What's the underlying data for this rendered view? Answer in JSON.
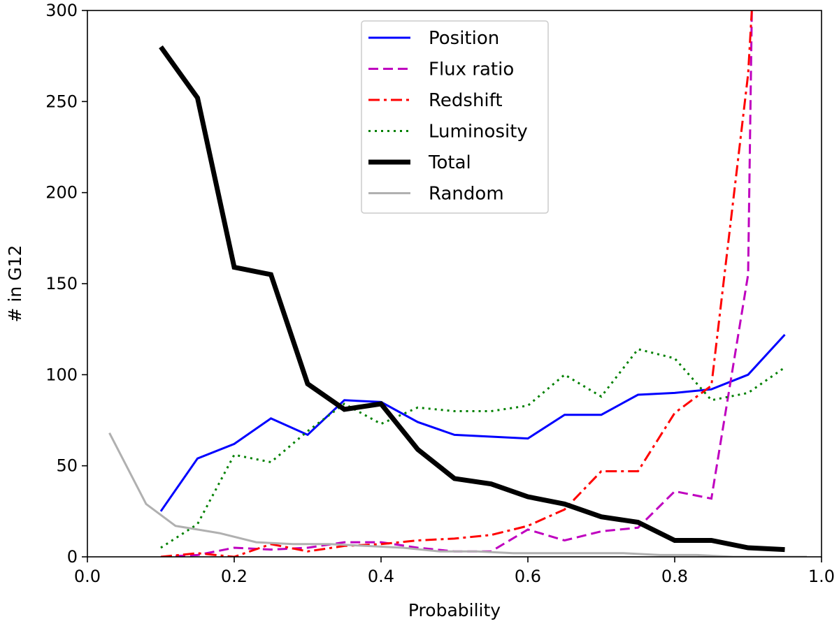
{
  "chart_data": {
    "type": "line",
    "title": "",
    "xlabel": "Probability",
    "ylabel": "# in G12",
    "xlim": [
      0.0,
      1.0
    ],
    "ylim": [
      0,
      300
    ],
    "xticks": [
      "0.0",
      "0.2",
      "0.4",
      "0.6",
      "0.8",
      "1.0"
    ],
    "yticks": [
      "0",
      "50",
      "100",
      "150",
      "200",
      "250",
      "300"
    ],
    "grid": false,
    "legend_position": "top-center",
    "series": [
      {
        "name": "Position",
        "color": "#0000ff",
        "style": "solid",
        "x": [
          0.1,
          0.15,
          0.2,
          0.25,
          0.3,
          0.35,
          0.4,
          0.45,
          0.5,
          0.55,
          0.6,
          0.65,
          0.7,
          0.75,
          0.8,
          0.85,
          0.9,
          0.95
        ],
        "y": [
          25,
          54,
          62,
          76,
          67,
          86,
          85,
          74,
          67,
          66,
          65,
          78,
          78,
          89,
          90,
          92,
          100,
          122
        ]
      },
      {
        "name": "Flux ratio",
        "color": "#bf00bf",
        "style": "dashed",
        "x": [
          0.1,
          0.15,
          0.2,
          0.25,
          0.3,
          0.35,
          0.4,
          0.45,
          0.5,
          0.55,
          0.6,
          0.65,
          0.7,
          0.75,
          0.8,
          0.85,
          0.9,
          0.905
        ],
        "y": [
          0,
          1,
          5,
          4,
          5,
          8,
          8,
          5,
          3,
          3,
          15,
          9,
          14,
          16,
          36,
          32,
          155,
          300
        ]
      },
      {
        "name": "Redshift",
        "color": "#ff0000",
        "style": "dashdot",
        "x": [
          0.1,
          0.15,
          0.2,
          0.25,
          0.3,
          0.35,
          0.4,
          0.45,
          0.5,
          0.55,
          0.6,
          0.65,
          0.7,
          0.75,
          0.8,
          0.85,
          0.9,
          0.905
        ],
        "y": [
          0,
          2,
          0,
          7,
          3,
          6,
          7,
          9,
          10,
          12,
          17,
          26,
          47,
          47,
          79,
          94,
          265,
          300
        ]
      },
      {
        "name": "Luminosity",
        "color": "#008000",
        "style": "dotted",
        "x": [
          0.1,
          0.15,
          0.2,
          0.25,
          0.3,
          0.35,
          0.4,
          0.45,
          0.5,
          0.55,
          0.6,
          0.65,
          0.7,
          0.75,
          0.8,
          0.85,
          0.9,
          0.95
        ],
        "y": [
          5,
          18,
          56,
          52,
          69,
          84,
          73,
          82,
          80,
          80,
          83,
          100,
          88,
          114,
          109,
          86,
          90,
          104
        ]
      },
      {
        "name": "Total",
        "color": "#000000",
        "style": "solid-thick",
        "x": [
          0.1,
          0.15,
          0.2,
          0.25,
          0.3,
          0.35,
          0.4,
          0.45,
          0.5,
          0.55,
          0.6,
          0.65,
          0.7,
          0.75,
          0.8,
          0.85,
          0.9,
          0.95
        ],
        "y": [
          280,
          252,
          159,
          155,
          95,
          81,
          84,
          59,
          43,
          40,
          33,
          29,
          22,
          19,
          9,
          9,
          5,
          4
        ]
      },
      {
        "name": "Random",
        "color": "#b0b0b0",
        "style": "solid",
        "x": [
          0.03,
          0.08,
          0.12,
          0.15,
          0.18,
          0.23,
          0.28,
          0.33,
          0.38,
          0.43,
          0.48,
          0.53,
          0.58,
          0.63,
          0.68,
          0.73,
          0.78,
          0.83,
          0.88,
          0.93,
          0.98
        ],
        "y": [
          68,
          29,
          17,
          15,
          13,
          8,
          7,
          7,
          6,
          5,
          3,
          3,
          2,
          2,
          2,
          2,
          1,
          1,
          0,
          0,
          0
        ]
      }
    ]
  }
}
